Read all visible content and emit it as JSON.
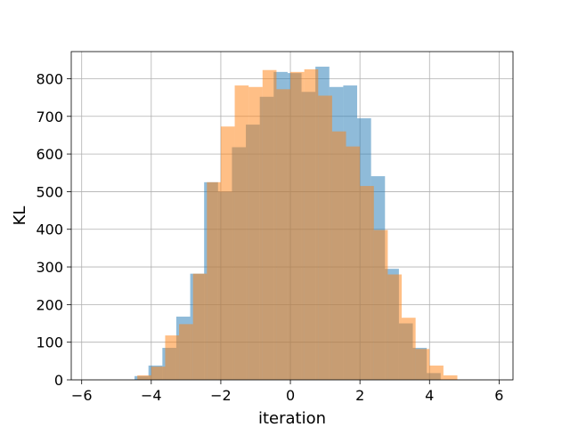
{
  "chart_data": {
    "type": "bar",
    "subtype": "histogram",
    "title": "",
    "xlabel": "iteration",
    "ylabel": "KL",
    "xlim": [
      -6.3,
      6.4
    ],
    "ylim": [
      0,
      872
    ],
    "x_ticks": [
      -6,
      -4,
      -2,
      0,
      2,
      4,
      6
    ],
    "y_ticks": [
      0,
      100,
      200,
      300,
      400,
      500,
      600,
      700,
      800
    ],
    "grid": true,
    "legend": "none",
    "series": [
      {
        "color": "#1f77b4",
        "opacity": 0.5,
        "bins": [
          {
            "x0": -4.48,
            "x1": -4.08,
            "value": 10
          },
          {
            "x0": -4.08,
            "x1": -3.68,
            "value": 38
          },
          {
            "x0": -3.68,
            "x1": -3.28,
            "value": 85
          },
          {
            "x0": -3.28,
            "x1": -2.88,
            "value": 168
          },
          {
            "x0": -2.88,
            "x1": -2.48,
            "value": 282
          },
          {
            "x0": -2.48,
            "x1": -2.08,
            "value": 525
          },
          {
            "x0": -2.08,
            "x1": -1.68,
            "value": 500
          },
          {
            "x0": -1.68,
            "x1": -1.28,
            "value": 618
          },
          {
            "x0": -1.28,
            "x1": -0.88,
            "value": 678
          },
          {
            "x0": -0.88,
            "x1": -0.48,
            "value": 752
          },
          {
            "x0": -0.48,
            "x1": -0.08,
            "value": 818
          },
          {
            "x0": -0.08,
            "x1": 0.32,
            "value": 815
          },
          {
            "x0": 0.32,
            "x1": 0.72,
            "value": 765
          },
          {
            "x0": 0.72,
            "x1": 1.12,
            "value": 832
          },
          {
            "x0": 1.12,
            "x1": 1.52,
            "value": 778
          },
          {
            "x0": 1.52,
            "x1": 1.92,
            "value": 782
          },
          {
            "x0": 1.92,
            "x1": 2.32,
            "value": 695
          },
          {
            "x0": 2.32,
            "x1": 2.72,
            "value": 541
          },
          {
            "x0": 2.72,
            "x1": 3.12,
            "value": 295
          },
          {
            "x0": 3.12,
            "x1": 3.52,
            "value": 150
          },
          {
            "x0": 3.52,
            "x1": 3.92,
            "value": 85
          },
          {
            "x0": 3.92,
            "x1": 4.32,
            "value": 18
          }
        ]
      },
      {
        "color": "#ff7f0e",
        "opacity": 0.5,
        "bins": [
          {
            "x0": -4.4,
            "x1": -4.0,
            "value": 12
          },
          {
            "x0": -4.0,
            "x1": -3.6,
            "value": 35
          },
          {
            "x0": -3.6,
            "x1": -3.2,
            "value": 118
          },
          {
            "x0": -3.2,
            "x1": -2.8,
            "value": 148
          },
          {
            "x0": -2.8,
            "x1": -2.4,
            "value": 282
          },
          {
            "x0": -2.4,
            "x1": -2.0,
            "value": 525
          },
          {
            "x0": -2.0,
            "x1": -1.6,
            "value": 673
          },
          {
            "x0": -1.6,
            "x1": -1.2,
            "value": 782
          },
          {
            "x0": -1.2,
            "x1": -0.8,
            "value": 778
          },
          {
            "x0": -0.8,
            "x1": -0.4,
            "value": 823
          },
          {
            "x0": -0.4,
            "x1": 0.0,
            "value": 772
          },
          {
            "x0": 0.0,
            "x1": 0.4,
            "value": 818
          },
          {
            "x0": 0.4,
            "x1": 0.8,
            "value": 825
          },
          {
            "x0": 0.8,
            "x1": 1.2,
            "value": 755
          },
          {
            "x0": 1.2,
            "x1": 1.6,
            "value": 660
          },
          {
            "x0": 1.6,
            "x1": 2.0,
            "value": 620
          },
          {
            "x0": 2.0,
            "x1": 2.4,
            "value": 515
          },
          {
            "x0": 2.4,
            "x1": 2.8,
            "value": 398
          },
          {
            "x0": 2.8,
            "x1": 3.2,
            "value": 280
          },
          {
            "x0": 3.2,
            "x1": 3.6,
            "value": 165
          },
          {
            "x0": 3.6,
            "x1": 4.0,
            "value": 82
          },
          {
            "x0": 4.0,
            "x1": 4.4,
            "value": 38
          },
          {
            "x0": 4.4,
            "x1": 4.8,
            "value": 12
          }
        ]
      }
    ]
  }
}
